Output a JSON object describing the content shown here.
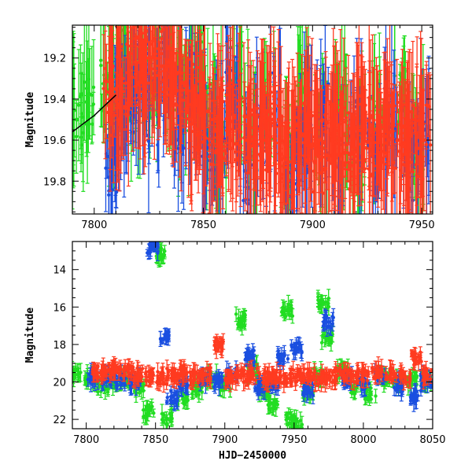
{
  "chart_data": [
    {
      "type": "scatter",
      "panel": "top",
      "title": "",
      "xlabel": "",
      "ylabel": "Magnitude",
      "xlim": [
        7790,
        7955
      ],
      "ylim": [
        19.96,
        19.04
      ],
      "y_inverted": true,
      "xticks": [
        7800,
        7850,
        7900,
        7950
      ],
      "yticks": [
        19.2,
        19.4,
        19.6,
        19.8
      ],
      "series": [
        {
          "color": "#22dd22",
          "points": [
            [
              7792,
              19.5
            ],
            [
              7797,
              19.45
            ],
            [
              7806,
              19.3
            ],
            [
              7809,
              19.42
            ],
            [
              7812,
              19.25
            ],
            [
              7815,
              19.2
            ],
            [
              7818,
              19.35
            ],
            [
              7821,
              19.15
            ],
            [
              7826,
              19.28
            ],
            [
              7831,
              19.1
            ],
            [
              7836,
              19.32
            ],
            [
              7842,
              19.4
            ],
            [
              7847,
              19.22
            ],
            [
              7853,
              19.48
            ],
            [
              7858,
              19.55
            ],
            [
              7865,
              19.3
            ],
            [
              7872,
              19.62
            ],
            [
              7880,
              19.45
            ],
            [
              7888,
              19.7
            ],
            [
              7896,
              19.35
            ],
            [
              7904,
              19.58
            ],
            [
              7913,
              19.42
            ],
            [
              7921,
              19.66
            ],
            [
              7930,
              19.5
            ],
            [
              7940,
              19.38
            ],
            [
              7948,
              19.6
            ]
          ]
        },
        {
          "color": "#1a4fe0",
          "points": [
            [
              7808,
              19.7
            ],
            [
              7811,
              19.55
            ],
            [
              7816,
              19.4
            ],
            [
              7822,
              19.3
            ],
            [
              7827,
              19.45
            ],
            [
              7833,
              19.25
            ],
            [
              7839,
              19.5
            ],
            [
              7845,
              19.35
            ],
            [
              7851,
              19.6
            ],
            [
              7857,
              19.65
            ],
            [
              7863,
              19.4
            ],
            [
              7869,
              19.75
            ],
            [
              7876,
              19.55
            ],
            [
              7883,
              19.45
            ],
            [
              7890,
              19.8
            ],
            [
              7897,
              19.62
            ],
            [
              7905,
              19.5
            ],
            [
              7912,
              19.72
            ],
            [
              7920,
              19.58
            ],
            [
              7928,
              19.68
            ],
            [
              7936,
              19.48
            ],
            [
              7944,
              19.76
            ],
            [
              7951,
              19.55
            ]
          ]
        },
        {
          "color": "#ff3b20",
          "points": [
            [
              7807,
              19.4
            ],
            [
              7810,
              19.35
            ],
            [
              7813,
              19.3
            ],
            [
              7816,
              19.28
            ],
            [
              7819,
              19.22
            ],
            [
              7822,
              19.26
            ],
            [
              7825,
              19.2
            ],
            [
              7828,
              19.18
            ],
            [
              7831,
              19.24
            ],
            [
              7834,
              19.22
            ],
            [
              7837,
              19.3
            ],
            [
              7840,
              19.32
            ],
            [
              7843,
              19.36
            ],
            [
              7846,
              19.42
            ],
            [
              7849,
              19.48
            ],
            [
              7852,
              19.46
            ],
            [
              7855,
              19.55
            ],
            [
              7858,
              19.52
            ],
            [
              7861,
              19.5
            ],
            [
              7864,
              19.48
            ],
            [
              7867,
              19.56
            ],
            [
              7870,
              19.6
            ],
            [
              7873,
              19.54
            ],
            [
              7876,
              19.62
            ],
            [
              7879,
              19.58
            ],
            [
              7882,
              19.5
            ],
            [
              7885,
              19.66
            ],
            [
              7888,
              19.6
            ],
            [
              7891,
              19.64
            ],
            [
              7894,
              19.58
            ],
            [
              7897,
              19.55
            ],
            [
              7900,
              19.62
            ],
            [
              7903,
              19.68
            ],
            [
              7906,
              19.56
            ],
            [
              7909,
              19.52
            ],
            [
              7912,
              19.6
            ],
            [
              7915,
              19.66
            ],
            [
              7918,
              19.58
            ],
            [
              7921,
              19.62
            ],
            [
              7924,
              19.54
            ],
            [
              7927,
              19.6
            ],
            [
              7930,
              19.64
            ],
            [
              7933,
              19.58
            ],
            [
              7936,
              19.56
            ],
            [
              7939,
              19.6
            ],
            [
              7942,
              19.62
            ],
            [
              7945,
              19.58
            ],
            [
              7948,
              19.64
            ],
            [
              7951,
              19.6
            ]
          ]
        }
      ],
      "model_curve": [
        [
          7790,
          19.56
        ],
        [
          7795,
          19.52
        ],
        [
          7800,
          19.48
        ],
        [
          7805,
          19.43
        ],
        [
          7810,
          19.38
        ]
      ]
    },
    {
      "type": "scatter",
      "panel": "bottom",
      "title": "",
      "xlabel": "HJD−2450000",
      "ylabel": "Magnitude",
      "xlim": [
        7790,
        8050
      ],
      "ylim": [
        22.5,
        12.5
      ],
      "y_inverted": true,
      "xticks": [
        7800,
        7850,
        7900,
        7950,
        8000,
        8050
      ],
      "yticks": [
        14,
        16,
        18,
        20,
        22
      ],
      "series": [
        {
          "color": "#22dd22",
          "points": [
            [
              7792,
              19.6
            ],
            [
              7803,
              19.8
            ],
            [
              7812,
              20.2
            ],
            [
              7820,
              20.0
            ],
            [
              7828,
              19.9
            ],
            [
              7838,
              20.3
            ],
            [
              7845,
              21.6
            ],
            [
              7853,
              13.2
            ],
            [
              7858,
              22.0
            ],
            [
              7870,
              20.9
            ],
            [
              7880,
              20.4
            ],
            [
              7890,
              19.8
            ],
            [
              7900,
              20.1
            ],
            [
              7912,
              16.7
            ],
            [
              7920,
              19.4
            ],
            [
              7928,
              20.5
            ],
            [
              7935,
              21.2
            ],
            [
              7945,
              16.2
            ],
            [
              7948,
              22.0
            ],
            [
              7952,
              22.4
            ],
            [
              7960,
              20.6
            ],
            [
              7968,
              19.6
            ],
            [
              7971,
              15.8
            ],
            [
              7974,
              17.6
            ],
            [
              7985,
              19.3
            ],
            [
              7995,
              20.3
            ],
            [
              8005,
              20.6
            ],
            [
              8015,
              19.8
            ],
            [
              8025,
              20.1
            ],
            [
              8035,
              19.9
            ],
            [
              8045,
              19.8
            ]
          ]
        },
        {
          "color": "#1a4fe0",
          "points": [
            [
              7805,
              19.7
            ],
            [
              7815,
              19.8
            ],
            [
              7825,
              19.9
            ],
            [
              7835,
              20.0
            ],
            [
              7848,
              12.8
            ],
            [
              7856,
              17.7
            ],
            [
              7862,
              20.8
            ],
            [
              7870,
              20.2
            ],
            [
              7885,
              19.8
            ],
            [
              7895,
              20.0
            ],
            [
              7905,
              19.6
            ],
            [
              7918,
              18.6
            ],
            [
              7925,
              20.3
            ],
            [
              7935,
              20.2
            ],
            [
              7942,
              18.8
            ],
            [
              7952,
              18.2
            ],
            [
              7960,
              20.4
            ],
            [
              7975,
              16.8
            ],
            [
              7988,
              19.9
            ],
            [
              8000,
              20.1
            ],
            [
              8012,
              19.7
            ],
            [
              8025,
              20.2
            ],
            [
              8038,
              20.8
            ],
            [
              8045,
              19.9
            ]
          ]
        },
        {
          "color": "#ff3b20",
          "points": [
            [
              7808,
              19.5
            ],
            [
              7815,
              19.4
            ],
            [
              7822,
              19.3
            ],
            [
              7830,
              19.4
            ],
            [
              7838,
              19.6
            ],
            [
              7846,
              19.7
            ],
            [
              7854,
              19.8
            ],
            [
              7862,
              19.6
            ],
            [
              7870,
              19.5
            ],
            [
              7878,
              19.7
            ],
            [
              7886,
              19.6
            ],
            [
              7895,
              18.0
            ],
            [
              7904,
              19.8
            ],
            [
              7912,
              19.7
            ],
            [
              7920,
              19.6
            ],
            [
              7928,
              19.8
            ],
            [
              7936,
              19.7
            ],
            [
              7944,
              19.8
            ],
            [
              7952,
              19.7
            ],
            [
              7960,
              19.6
            ],
            [
              7968,
              19.8
            ],
            [
              7976,
              19.7
            ],
            [
              7984,
              19.6
            ],
            [
              7992,
              19.7
            ],
            [
              8000,
              19.6
            ],
            [
              8010,
              19.5
            ],
            [
              8020,
              19.6
            ],
            [
              8030,
              19.7
            ],
            [
              8038,
              18.7
            ],
            [
              8046,
              19.6
            ]
          ]
        }
      ]
    }
  ]
}
